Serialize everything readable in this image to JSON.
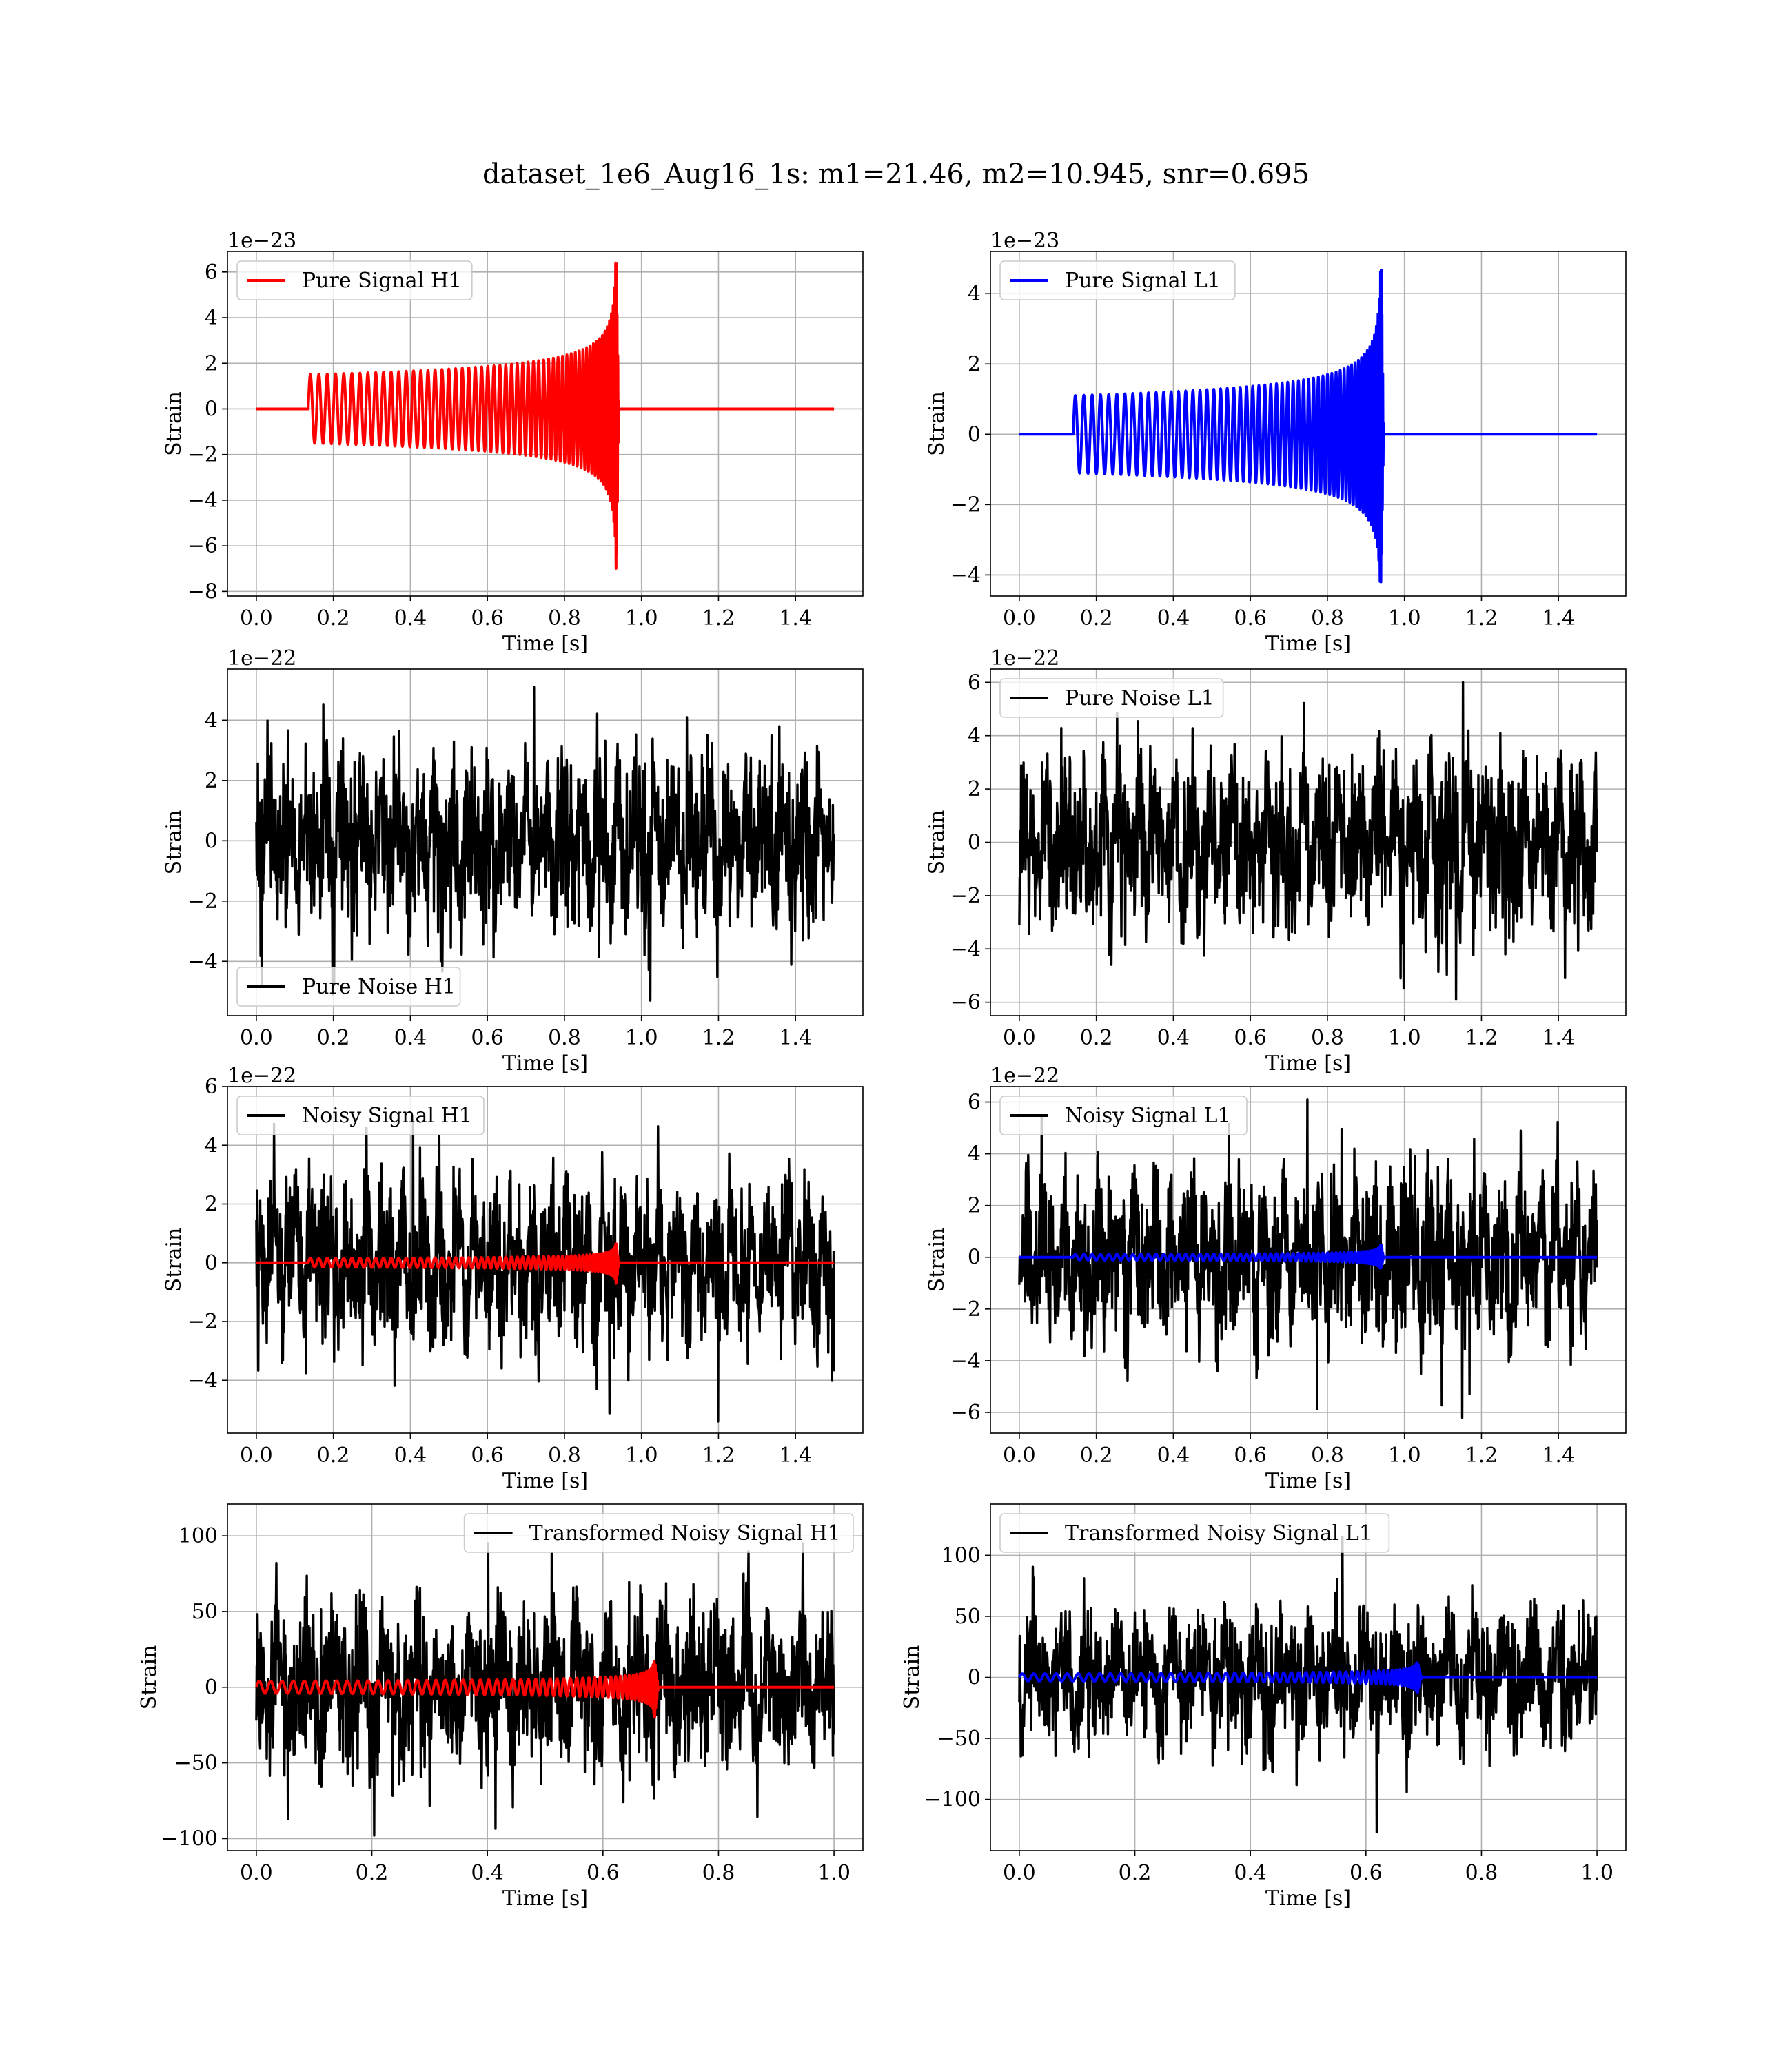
{
  "suptitle": "dataset_1e6_Aug16_1s: m1=21.46, m2=10.945, snr=0.695",
  "colors": {
    "h1": "#ff0000",
    "l1": "#0000ff",
    "noise": "#000000",
    "grid": "#b0b0b0"
  },
  "chart_data": [
    {
      "id": "pure-signal-h1",
      "type": "line",
      "xlabel": "Time [s]",
      "ylabel": "Strain",
      "offset_text": "1e−23",
      "xlim": [
        -0.075,
        1.575
      ],
      "ylim": [
        -8.2,
        6.9
      ],
      "xticks": [
        0.0,
        0.2,
        0.4,
        0.6,
        0.8,
        1.0,
        1.2,
        1.4
      ],
      "xtick_labels": [
        "0.0",
        "0.2",
        "0.4",
        "0.6",
        "0.8",
        "1.0",
        "1.2",
        "1.4"
      ],
      "yticks": [
        -8,
        -6,
        -4,
        -2,
        0,
        2,
        4,
        6
      ],
      "ytick_labels": [
        "−8",
        "−6",
        "−4",
        "−2",
        "0",
        "2",
        "4",
        "6"
      ],
      "legend": {
        "position": "upper left",
        "entries": [
          {
            "label": "Pure Signal H1",
            "color": "#ff0000"
          }
        ]
      },
      "series": [
        {
          "name": "Pure Signal H1",
          "color": "#ff0000",
          "kind": "chirp",
          "x_range": [
            0.0,
            1.5
          ],
          "t_start": 0.135,
          "t_merge": 0.935,
          "amp_start": 1.5,
          "amp_peak": 6.4,
          "amp_min": -7.6,
          "f_start": 45
        }
      ],
      "grid": true
    },
    {
      "id": "pure-signal-l1",
      "type": "line",
      "xlabel": "Time [s]",
      "ylabel": "Strain",
      "offset_text": "1e−23",
      "xlim": [
        -0.075,
        1.575
      ],
      "ylim": [
        -4.6,
        5.2
      ],
      "xticks": [
        0.0,
        0.2,
        0.4,
        0.6,
        0.8,
        1.0,
        1.2,
        1.4
      ],
      "xtick_labels": [
        "0.0",
        "0.2",
        "0.4",
        "0.6",
        "0.8",
        "1.0",
        "1.2",
        "1.4"
      ],
      "yticks": [
        -4,
        -2,
        0,
        2,
        4
      ],
      "ytick_labels": [
        "−4",
        "−2",
        "0",
        "2",
        "4"
      ],
      "legend": {
        "position": "upper left",
        "entries": [
          {
            "label": "Pure Signal L1",
            "color": "#0000ff"
          }
        ]
      },
      "series": [
        {
          "name": "Pure Signal L1",
          "color": "#0000ff",
          "kind": "chirp",
          "x_range": [
            0.0,
            1.5
          ],
          "t_start": 0.14,
          "t_merge": 0.94,
          "amp_start": 1.1,
          "amp_peak": 4.9,
          "amp_min": -4.2,
          "f_start": 45
        }
      ],
      "grid": true
    },
    {
      "id": "pure-noise-h1",
      "type": "line",
      "xlabel": "Time [s]",
      "ylabel": "Strain",
      "offset_text": "1e−22",
      "xlim": [
        -0.075,
        1.575
      ],
      "ylim": [
        -5.8,
        5.7
      ],
      "xticks": [
        0.0,
        0.2,
        0.4,
        0.6,
        0.8,
        1.0,
        1.2,
        1.4
      ],
      "xtick_labels": [
        "0.0",
        "0.2",
        "0.4",
        "0.6",
        "0.8",
        "1.0",
        "1.2",
        "1.4"
      ],
      "yticks": [
        -4,
        -2,
        0,
        2,
        4
      ],
      "ytick_labels": [
        "−4",
        "−2",
        "0",
        "2",
        "4"
      ],
      "legend": {
        "position": "lower left",
        "entries": [
          {
            "label": "Pure Noise H1",
            "color": "#000000"
          }
        ]
      },
      "series": [
        {
          "name": "Pure Noise H1",
          "color": "#000000",
          "kind": "noise",
          "x_range": [
            0.0,
            1.5
          ],
          "amplitude": 1.6,
          "peak_max": 5.1,
          "peak_min": -5.3
        }
      ],
      "grid": true
    },
    {
      "id": "pure-noise-l1",
      "type": "line",
      "xlabel": "Time [s]",
      "ylabel": "Strain",
      "offset_text": "1e−22",
      "xlim": [
        -0.075,
        1.575
      ],
      "ylim": [
        -6.5,
        6.5
      ],
      "xticks": [
        0.0,
        0.2,
        0.4,
        0.6,
        0.8,
        1.0,
        1.2,
        1.4
      ],
      "xtick_labels": [
        "0.0",
        "0.2",
        "0.4",
        "0.6",
        "0.8",
        "1.0",
        "1.2",
        "1.4"
      ],
      "yticks": [
        -6,
        -4,
        -2,
        0,
        2,
        4,
        6
      ],
      "ytick_labels": [
        "−6",
        "−4",
        "−2",
        "0",
        "2",
        "4",
        "6"
      ],
      "legend": {
        "position": "upper left",
        "entries": [
          {
            "label": "Pure Noise L1",
            "color": "#000000"
          }
        ]
      },
      "series": [
        {
          "name": "Pure Noise L1",
          "color": "#000000",
          "kind": "noise",
          "x_range": [
            0.0,
            1.5
          ],
          "amplitude": 1.8,
          "peak_max": 6.0,
          "peak_min": -5.9
        }
      ],
      "grid": true
    },
    {
      "id": "noisy-signal-h1",
      "type": "line",
      "xlabel": "Time [s]",
      "ylabel": "Strain",
      "offset_text": "1e−22",
      "xlim": [
        -0.075,
        1.575
      ],
      "ylim": [
        -5.8,
        6.0
      ],
      "xticks": [
        0.0,
        0.2,
        0.4,
        0.6,
        0.8,
        1.0,
        1.2,
        1.4
      ],
      "xtick_labels": [
        "0.0",
        "0.2",
        "0.4",
        "0.6",
        "0.8",
        "1.0",
        "1.2",
        "1.4"
      ],
      "yticks": [
        -4,
        -2,
        0,
        2,
        4,
        6
      ],
      "ytick_labels": [
        "−4",
        "−2",
        "0",
        "2",
        "4",
        "6"
      ],
      "legend": {
        "position": "upper left",
        "entries": [
          {
            "label": "Noisy Signal H1",
            "color": "#000000"
          }
        ]
      },
      "series": [
        {
          "name": "Noisy Signal H1",
          "color": "#000000",
          "kind": "noise",
          "x_range": [
            0.0,
            1.5
          ],
          "amplitude": 1.6,
          "peak_max": 5.0,
          "peak_min": -5.4
        },
        {
          "name": "",
          "color": "#ff0000",
          "kind": "chirp",
          "x_range": [
            0.0,
            1.5
          ],
          "t_start": 0.135,
          "t_merge": 0.935,
          "amp_start": 0.15,
          "amp_peak": 0.64,
          "amp_min": -0.76,
          "f_start": 45
        }
      ],
      "grid": true
    },
    {
      "id": "noisy-signal-l1",
      "type": "line",
      "xlabel": "Time [s]",
      "ylabel": "Strain",
      "offset_text": "1e−22",
      "xlim": [
        -0.075,
        1.575
      ],
      "ylim": [
        -6.8,
        6.6
      ],
      "xticks": [
        0.0,
        0.2,
        0.4,
        0.6,
        0.8,
        1.0,
        1.2,
        1.4
      ],
      "xtick_labels": [
        "0.0",
        "0.2",
        "0.4",
        "0.6",
        "0.8",
        "1.0",
        "1.2",
        "1.4"
      ],
      "yticks": [
        -6,
        -4,
        -2,
        0,
        2,
        4,
        6
      ],
      "ytick_labels": [
        "−6",
        "−4",
        "−2",
        "0",
        "2",
        "4",
        "6"
      ],
      "legend": {
        "position": "upper left",
        "entries": [
          {
            "label": "Noisy Signal L1",
            "color": "#000000"
          }
        ]
      },
      "series": [
        {
          "name": "Noisy Signal L1",
          "color": "#000000",
          "kind": "noise",
          "x_range": [
            0.0,
            1.5
          ],
          "amplitude": 1.8,
          "peak_max": 6.1,
          "peak_min": -6.2
        },
        {
          "name": "",
          "color": "#0000ff",
          "kind": "chirp",
          "x_range": [
            0.0,
            1.5
          ],
          "t_start": 0.14,
          "t_merge": 0.94,
          "amp_start": 0.11,
          "amp_peak": 0.49,
          "amp_min": -0.42,
          "f_start": 45
        }
      ],
      "grid": true
    },
    {
      "id": "transformed-noisy-signal-h1",
      "type": "line",
      "xlabel": "Time [s]",
      "ylabel": "Strain",
      "offset_text": "",
      "xlim": [
        -0.05,
        1.05
      ],
      "ylim": [
        -108,
        121
      ],
      "xticks": [
        0.0,
        0.2,
        0.4,
        0.6,
        0.8,
        1.0
      ],
      "xtick_labels": [
        "0.0",
        "0.2",
        "0.4",
        "0.6",
        "0.8",
        "1.0"
      ],
      "yticks": [
        -100,
        -50,
        0,
        50,
        100
      ],
      "ytick_labels": [
        "−100",
        "−50",
        "0",
        "50",
        "100"
      ],
      "legend": {
        "position": "upper right",
        "entries": [
          {
            "label": "Transformed Noisy Signal H1",
            "color": "#000000"
          }
        ]
      },
      "series": [
        {
          "name": "Transformed Noisy Signal H1",
          "color": "#000000",
          "kind": "noise",
          "x_range": [
            0.0,
            1.0
          ],
          "amplitude": 30,
          "peak_max": 95,
          "peak_min": -98
        },
        {
          "name": "",
          "color": "#ff0000",
          "kind": "chirp",
          "x_range": [
            0.0,
            1.0
          ],
          "t_start": 0.0,
          "t_merge": 0.69,
          "amp_start": 4,
          "amp_peak": 17,
          "amp_min": -20,
          "f_start": 50
        }
      ],
      "grid": true
    },
    {
      "id": "transformed-noisy-signal-l1",
      "type": "line",
      "xlabel": "Time [s]",
      "ylabel": "Strain",
      "offset_text": "",
      "xlim": [
        -0.05,
        1.05
      ],
      "ylim": [
        -142,
        142
      ],
      "xticks": [
        0.0,
        0.2,
        0.4,
        0.6,
        0.8,
        1.0
      ],
      "xtick_labels": [
        "0.0",
        "0.2",
        "0.4",
        "0.6",
        "0.8",
        "1.0"
      ],
      "yticks": [
        -100,
        -50,
        0,
        50,
        100
      ],
      "ytick_labels": [
        "−100",
        "−50",
        "0",
        "50",
        "100"
      ],
      "legend": {
        "position": "upper left",
        "entries": [
          {
            "label": "Transformed Noisy Signal L1",
            "color": "#000000"
          }
        ]
      },
      "series": [
        {
          "name": "Transformed Noisy Signal L1",
          "color": "#000000",
          "kind": "noise",
          "x_range": [
            0.0,
            1.0
          ],
          "amplitude": 30,
          "peak_max": 115,
          "peak_min": -127
        },
        {
          "name": "",
          "color": "#0000ff",
          "kind": "chirp",
          "x_range": [
            0.0,
            1.0
          ],
          "t_start": 0.0,
          "t_merge": 0.69,
          "amp_start": 3,
          "amp_peak": 12,
          "amp_min": -12,
          "f_start": 50
        }
      ],
      "grid": true
    }
  ]
}
